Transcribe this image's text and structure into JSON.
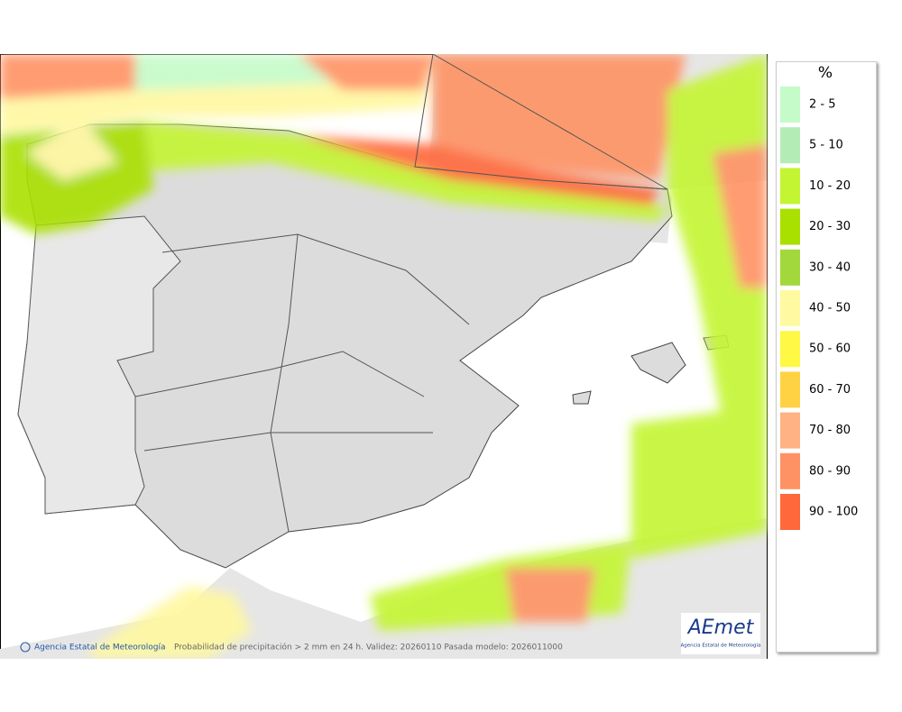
{
  "map": {
    "credit": "Agencia Estatal de Meteorología",
    "caption": "Probabilidad de precipitación > 2 mm en 24 h. Validez: 20260110 Pasada modelo: 2026011000"
  },
  "logo": {
    "name": "AEmet",
    "subtitle": "Agencia Estatal de Meteorología"
  },
  "legend": {
    "title": "%",
    "items": [
      {
        "label": "2 - 5",
        "color": "#c4fbc8"
      },
      {
        "label": "5 - 10",
        "color": "#b4ecb6"
      },
      {
        "label": "10 - 20",
        "color": "#c4f532"
      },
      {
        "label": "20 - 30",
        "color": "#aae000"
      },
      {
        "label": "30 - 40",
        "color": "#a2d83c"
      },
      {
        "label": "40 - 50",
        "color": "#fffaa2"
      },
      {
        "label": "50 - 60",
        "color": "#fff844"
      },
      {
        "label": "60 - 70",
        "color": "#ffd244"
      },
      {
        "label": "70 - 80",
        "color": "#ffb284"
      },
      {
        "label": "80 - 90",
        "color": "#ff9264"
      },
      {
        "label": "90 - 100",
        "color": "#ff683a"
      }
    ]
  }
}
